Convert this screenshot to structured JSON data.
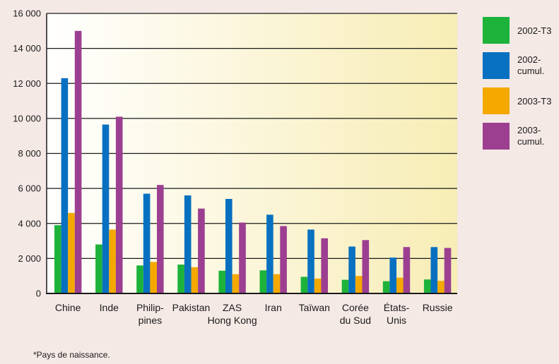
{
  "chart_data": {
    "type": "bar",
    "categories": [
      [
        "Chine"
      ],
      [
        "Inde"
      ],
      [
        "Philip-",
        "pines"
      ],
      [
        "Pakistan"
      ],
      [
        "ZAS",
        "Hong Kong"
      ],
      [
        "Iran"
      ],
      [
        "Taïwan"
      ],
      [
        "Corée",
        "du Sud"
      ],
      [
        "États-",
        "Unis"
      ],
      [
        "Russie"
      ]
    ],
    "series": [
      {
        "name": "2002-T3",
        "legend_lines": [
          "2002-T3"
        ],
        "color": "#1db33a",
        "values": [
          3900,
          2800,
          1600,
          1650,
          1300,
          1320,
          950,
          780,
          700,
          800
        ]
      },
      {
        "name": "2002-cumul.",
        "legend_lines": [
          "2002-",
          "cumul."
        ],
        "color": "#0870c0",
        "values": [
          12300,
          9650,
          5700,
          5600,
          5400,
          4500,
          3650,
          2680,
          2050,
          2650
        ]
      },
      {
        "name": "2003-T3",
        "legend_lines": [
          "2003-T3"
        ],
        "color": "#f5a800",
        "values": [
          4600,
          3650,
          1800,
          1500,
          1100,
          1100,
          850,
          1000,
          900,
          720
        ]
      },
      {
        "name": "2003-cumul.",
        "legend_lines": [
          "2003-",
          "cumul."
        ],
        "color": "#9c3f91",
        "values": [
          15000,
          10100,
          6200,
          4850,
          4050,
          3850,
          3150,
          3050,
          2650,
          2600
        ]
      }
    ],
    "y_ticks": [
      {
        "value": 0,
        "label": "0"
      },
      {
        "value": 2000,
        "label": "2 000"
      },
      {
        "value": 4000,
        "label": "4 000"
      },
      {
        "value": 6000,
        "label": "6 000"
      },
      {
        "value": 8000,
        "label": "8 000"
      },
      {
        "value": 10000,
        "label": "10 000"
      },
      {
        "value": 12000,
        "label": "12 000"
      },
      {
        "value": 14000,
        "label": "14 000"
      },
      {
        "value": 16000,
        "label": "16 000"
      }
    ],
    "ylim": [
      0,
      16000
    ],
    "grid": true,
    "legend_position": "right",
    "background_gradient": [
      "#ffffff",
      "#f7edb5"
    ]
  },
  "footnote": "*Pays de naissance."
}
